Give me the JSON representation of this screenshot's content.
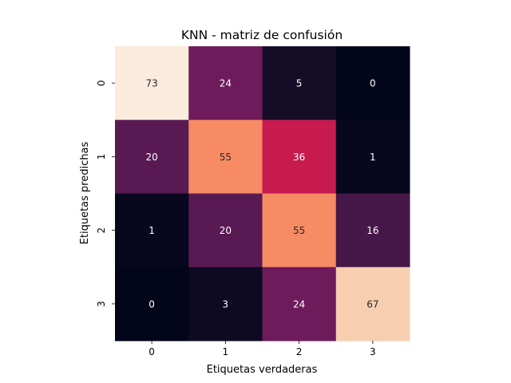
{
  "chart_data": {
    "type": "heatmap",
    "title": "KNN - matriz de confusión",
    "xlabel": "Etiquetas verdaderas",
    "ylabel": "Etiquetas predichas",
    "x_ticks": [
      "0",
      "1",
      "2",
      "3"
    ],
    "y_ticks": [
      "0",
      "1",
      "2",
      "3"
    ],
    "matrix": [
      [
        73,
        24,
        5,
        0
      ],
      [
        20,
        55,
        36,
        1
      ],
      [
        1,
        20,
        55,
        16
      ],
      [
        0,
        3,
        24,
        67
      ]
    ],
    "value_range": [
      0,
      73
    ],
    "colormap": "rocket",
    "annotated": true,
    "colorbar": false
  }
}
